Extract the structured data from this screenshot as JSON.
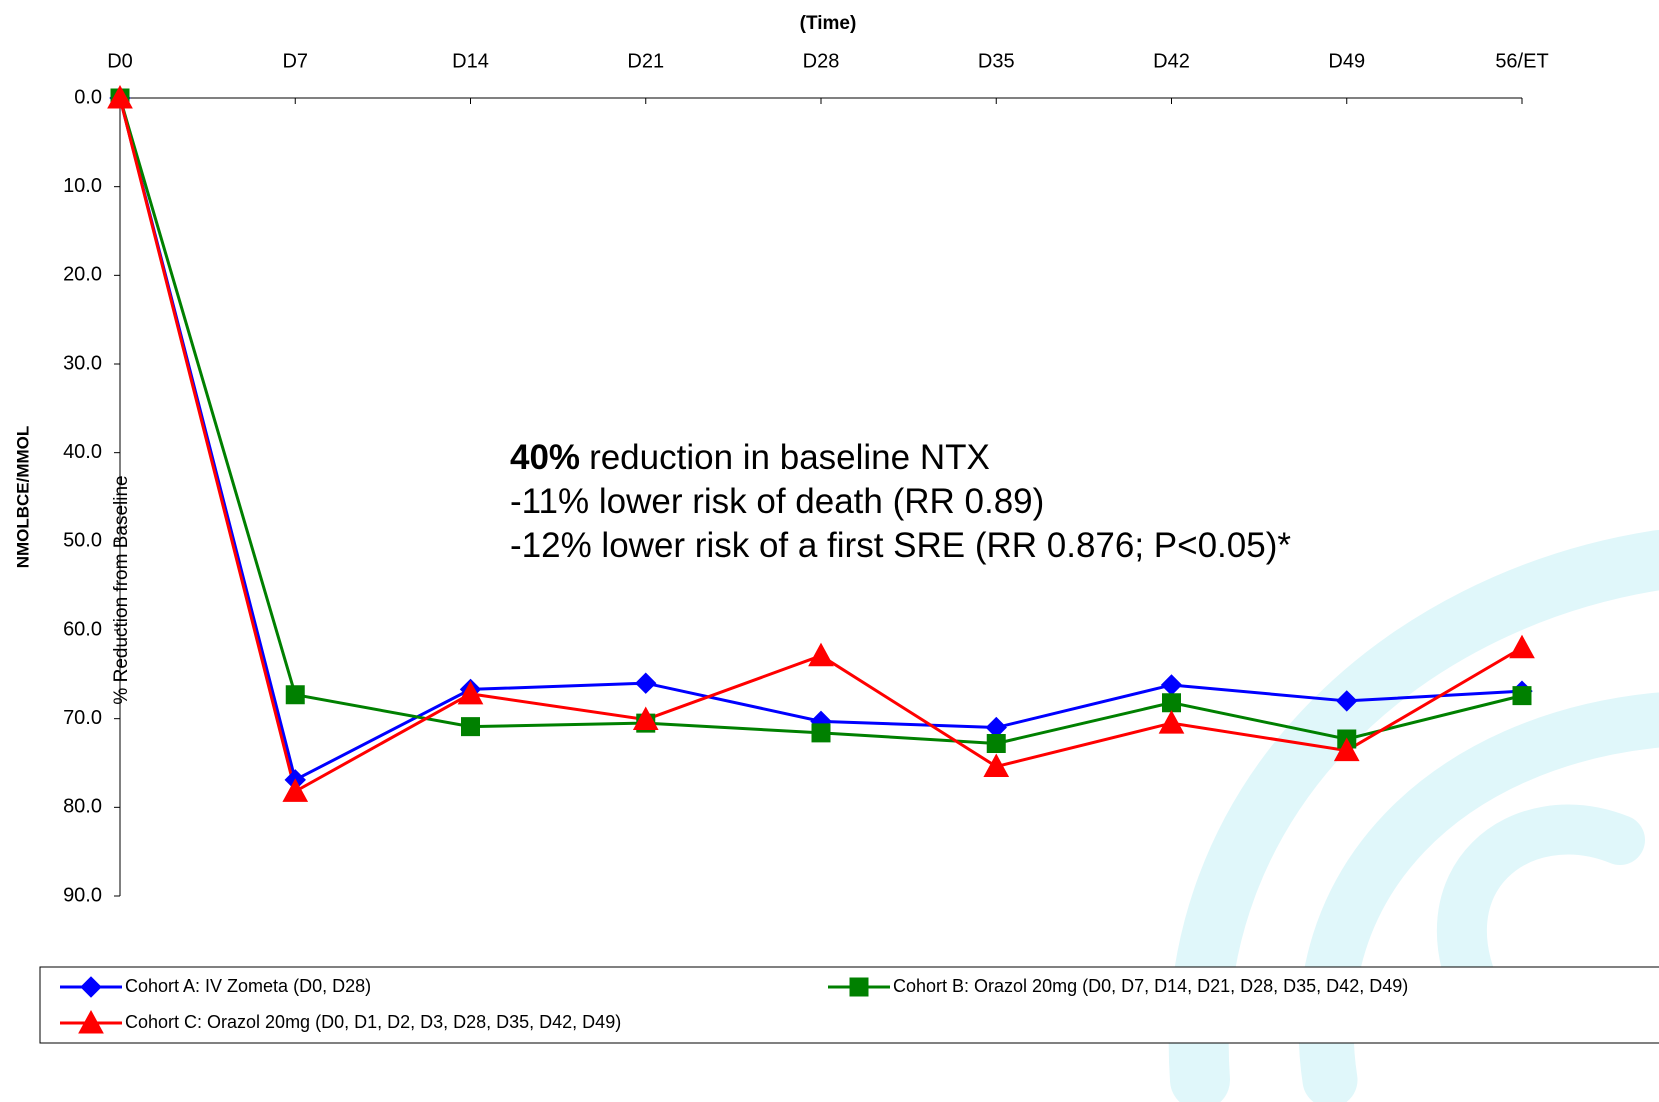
{
  "chart_data": {
    "type": "line",
    "title": "(Time)",
    "ylabel": "NMOLBCE/MMOL",
    "ylabel2": "% Reduction from Baseline",
    "annotation": {
      "bold": "40%",
      "lines": [
        "reduction in baseline NTX",
        "-11% lower risk of death (RR 0.89)",
        "-12% lower risk of a first SRE (RR 0.876; P<0.05)*"
      ]
    },
    "categories": [
      "D0",
      "D7",
      "D14",
      "D21",
      "D28",
      "D35",
      "D42",
      "D49",
      "56/ET"
    ],
    "series": [
      {
        "name": "Cohort A: IV Zometa (D0, D28)",
        "color": "#0000ff",
        "marker": "diamond",
        "values": [
          0,
          76.9,
          66.7,
          66.0,
          70.3,
          71.0,
          66.2,
          68.0,
          66.9
        ]
      },
      {
        "name": "Cohort B: Orazol 20mg (D0, D7, D14, D21, D28, D35, D42, D49)",
        "color": "#008000",
        "marker": "square",
        "values": [
          0,
          67.3,
          70.9,
          70.5,
          71.6,
          72.8,
          68.2,
          72.3,
          67.4
        ]
      },
      {
        "name": "Cohort C: Orazol 20mg (D0, D1, D2, D3, D28, D35, D42, D49)",
        "color": "#ff0000",
        "marker": "triangle",
        "values": [
          0,
          78.2,
          67.2,
          70.1,
          62.9,
          75.4,
          70.5,
          73.6,
          62.0
        ]
      }
    ],
    "ylim": [
      0,
      90
    ],
    "y_inverted": true,
    "yticks": [
      {
        "value": 0,
        "label": "0.0"
      },
      {
        "value": 10,
        "label": "10.0"
      },
      {
        "value": 20,
        "label": "20.0"
      },
      {
        "value": 30,
        "label": "30.0"
      },
      {
        "value": 40,
        "label": "40.0"
      },
      {
        "value": 50,
        "label": "50.0"
      },
      {
        "value": 60,
        "label": "60.0"
      },
      {
        "value": 70,
        "label": "70.0"
      },
      {
        "value": 80,
        "label": "80.0"
      },
      {
        "value": 90,
        "label": "90.0"
      }
    ],
    "grid": false
  }
}
